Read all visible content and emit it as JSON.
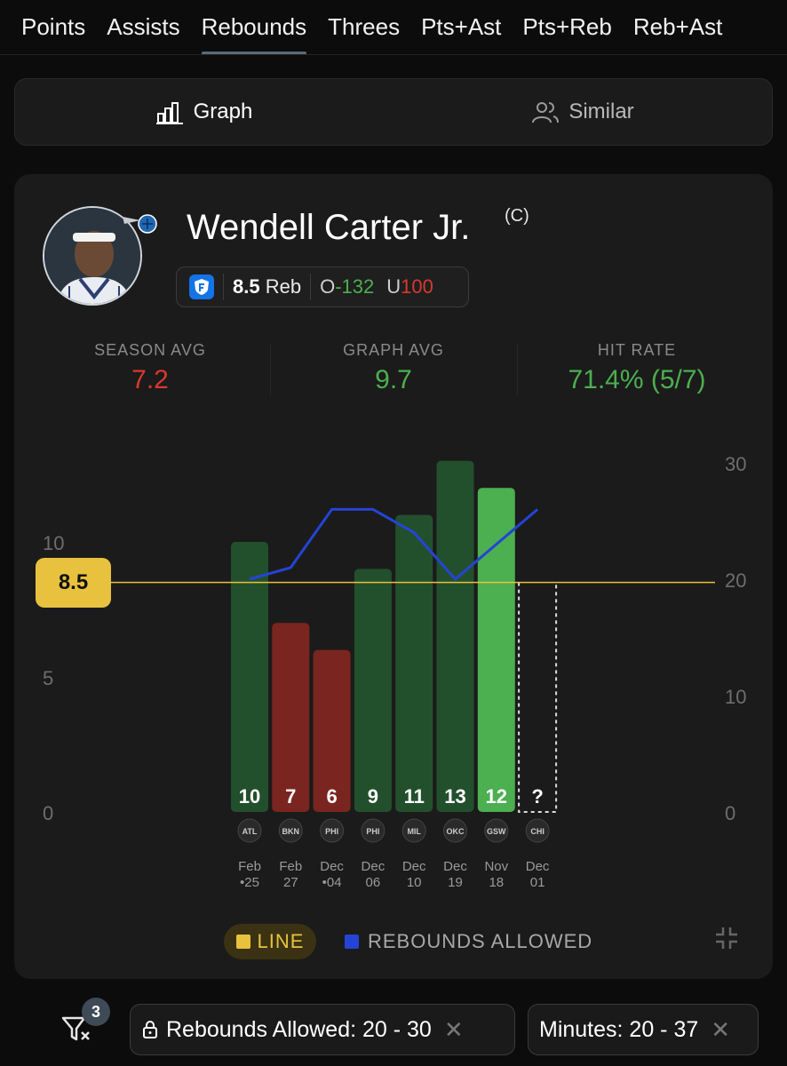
{
  "tabs": [
    {
      "label": "Points"
    },
    {
      "label": "Assists"
    },
    {
      "label": "Rebounds",
      "active": true
    },
    {
      "label": "Threes"
    },
    {
      "label": "Pts+Ast"
    },
    {
      "label": "Pts+Reb"
    },
    {
      "label": "Reb+Ast"
    }
  ],
  "view_toggle": {
    "graph": "Graph",
    "similar": "Similar"
  },
  "player": {
    "name": "Wendell Carter Jr.",
    "position_tag": "(C)",
    "prop_line": "8.5",
    "prop_stat": "Reb",
    "over_label": "O",
    "over_odds": "-132",
    "under_label": "U",
    "under_odds": "100"
  },
  "stats": [
    {
      "label": "SEASON AVG",
      "value": "7.2",
      "color": "#d9382f"
    },
    {
      "label": "GRAPH AVG",
      "value": "9.7",
      "color": "#4caf50"
    },
    {
      "label": "HIT RATE",
      "value": "71.4% (5/7)",
      "color": "#4caf50"
    }
  ],
  "chart_data": {
    "type": "bar",
    "line_value": 8.5,
    "line_label": "8.5",
    "left_axis": {
      "ticks": [
        0,
        5,
        10
      ],
      "labels": [
        "0",
        "5",
        "10"
      ],
      "max": 15
    },
    "right_axis": {
      "ticks": [
        0,
        10,
        20,
        30
      ],
      "labels": [
        "0",
        "10",
        "20",
        "30"
      ],
      "max": 30
    },
    "games": [
      {
        "value": 10,
        "label": "10",
        "month": "Feb",
        "day": "25",
        "dot": true,
        "team": "ATL",
        "result": "hit"
      },
      {
        "value": 7,
        "label": "7",
        "month": "Feb",
        "day": "27",
        "dot": false,
        "team": "BKN",
        "result": "miss"
      },
      {
        "value": 6,
        "label": "6",
        "month": "Dec",
        "day": "04",
        "dot": true,
        "team": "PHI",
        "result": "miss"
      },
      {
        "value": 9,
        "label": "9",
        "month": "Dec",
        "day": "06",
        "dot": false,
        "team": "PHI",
        "result": "hit"
      },
      {
        "value": 11,
        "label": "11",
        "month": "Dec",
        "day": "10",
        "dot": false,
        "team": "MIL",
        "result": "hit"
      },
      {
        "value": 13,
        "label": "13",
        "month": "Dec",
        "day": "19",
        "dot": false,
        "team": "OKC",
        "result": "hit"
      },
      {
        "value": 12,
        "label": "12",
        "month": "Nov",
        "day": "18",
        "dot": false,
        "team": "GSW",
        "result": "hit",
        "highlight": true
      },
      {
        "value": null,
        "label": "?",
        "month": "Dec",
        "day": "01",
        "dot": false,
        "team": "CHI",
        "result": "upcoming"
      }
    ],
    "rebounds_allowed": [
      20,
      21,
      26,
      26,
      24,
      20,
      23,
      26
    ],
    "colors": {
      "hit": "#23502c",
      "hit_highlight": "#4caf50",
      "miss": "#7b2520",
      "line": "#e8c23e",
      "allowed": "#2444d6"
    }
  },
  "legend": {
    "line": "LINE",
    "allowed": "REBOUNDS ALLOWED"
  },
  "filters": {
    "count": "3",
    "chips": [
      {
        "label": "Rebounds Allowed: 20 - 30",
        "locked": true
      },
      {
        "label": "Minutes: 20 - 37",
        "locked": false
      }
    ]
  }
}
